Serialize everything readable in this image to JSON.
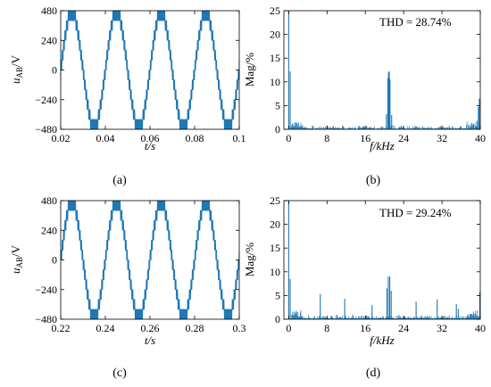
{
  "colors": {
    "series": "#1f77b4",
    "axis": "#000000",
    "background": "#ffffff"
  },
  "chart_data": [
    {
      "panel": "a",
      "caption": "(a)",
      "type": "line",
      "title": "",
      "xlabel": "t/s",
      "ylabel": "uAB/V",
      "ylabel_main": "u",
      "ylabel_sub": "AB",
      "ylabel_unit": "/V",
      "xlim": [
        0.02,
        0.1
      ],
      "ylim": [
        -480,
        480
      ],
      "xticks": [
        0.02,
        0.04,
        0.06,
        0.08,
        0.1
      ],
      "xtick_labels": [
        "0.02",
        "0.04",
        "0.06",
        "0.08",
        "0.1"
      ],
      "yticks": [
        480,
        240,
        0,
        -240,
        -480
      ],
      "ytick_labels": [
        "480",
        "240",
        "0",
        "−240",
        "−480"
      ],
      "grid": false,
      "series": [
        {
          "waveform": "multilevel stepped sine (line voltage)",
          "frequency_hz": 50,
          "amplitude_v": 480,
          "step_v": 80
        }
      ]
    },
    {
      "panel": "b",
      "caption": "(b)",
      "type": "bar",
      "title": "",
      "annotation": "THD = 28.74%",
      "xlabel": "f/kHz",
      "ylabel": "Mag/%",
      "xlim": [
        -1,
        40
      ],
      "ylim": [
        0,
        25
      ],
      "xticks": [
        0,
        8,
        16,
        24,
        32,
        40
      ],
      "xtick_labels": [
        "0",
        "8",
        "16",
        "24",
        "32",
        "40"
      ],
      "yticks": [
        0,
        5,
        10,
        15,
        20,
        25
      ],
      "ytick_labels": [
        "0",
        "5",
        "10",
        "15",
        "20",
        "25"
      ],
      "grid": false,
      "peaks": [
        {
          "f": 0,
          "mag": 25
        },
        {
          "f": 0.3,
          "mag": 12.2
        },
        {
          "f": 20.7,
          "mag": 10.8
        },
        {
          "f": 20.85,
          "mag": 12.1
        },
        {
          "f": 21.0,
          "mag": 12.2
        },
        {
          "f": 21.15,
          "mag": 10.5
        },
        {
          "f": 20.4,
          "mag": 3.2
        },
        {
          "f": 21.5,
          "mag": 3.0
        },
        {
          "f": 39.3,
          "mag": 1.8
        },
        {
          "f": 39.6,
          "mag": 4.7
        },
        {
          "f": 39.8,
          "mag": 6.5
        }
      ],
      "noise_floor": {
        "from": 0.5,
        "to": 40,
        "typical": 0.5
      }
    },
    {
      "panel": "c",
      "caption": "(c)",
      "type": "line",
      "title": "",
      "xlabel": "t/s",
      "ylabel": "uAB/V",
      "ylabel_main": "u",
      "ylabel_sub": "AB",
      "ylabel_unit": "/V",
      "xlim": [
        0.22,
        0.3
      ],
      "ylim": [
        -480,
        480
      ],
      "xticks": [
        0.22,
        0.24,
        0.26,
        0.28,
        0.3
      ],
      "xtick_labels": [
        "0.22",
        "0.24",
        "0.26",
        "0.28",
        "0.3"
      ],
      "yticks": [
        480,
        240,
        0,
        -240,
        -480
      ],
      "ytick_labels": [
        "480",
        "240",
        "0",
        "−240",
        "−480"
      ],
      "grid": false,
      "series": [
        {
          "waveform": "multilevel stepped sine (line voltage)",
          "frequency_hz": 50,
          "amplitude_v": 480,
          "step_v": 80
        }
      ]
    },
    {
      "panel": "d",
      "caption": "(d)",
      "type": "bar",
      "title": "",
      "annotation": "THD = 29.24%",
      "xlabel": "f/kHz",
      "ylabel": "Mag/%",
      "xlim": [
        -1,
        40
      ],
      "ylim": [
        0,
        25
      ],
      "xticks": [
        0,
        8,
        16,
        24,
        32,
        40
      ],
      "xtick_labels": [
        "0",
        "8",
        "16",
        "24",
        "32",
        "40"
      ],
      "yticks": [
        0,
        5,
        10,
        15,
        20,
        25
      ],
      "ytick_labels": [
        "0",
        "5",
        "10",
        "15",
        "20",
        "25"
      ],
      "grid": false,
      "peaks": [
        {
          "f": 0,
          "mag": 25
        },
        {
          "f": 0.3,
          "mag": 8.5
        },
        {
          "f": 6.6,
          "mag": 5.3
        },
        {
          "f": 11.7,
          "mag": 4.3
        },
        {
          "f": 17.4,
          "mag": 3.0
        },
        {
          "f": 20.5,
          "mag": 6.5
        },
        {
          "f": 20.8,
          "mag": 9.0
        },
        {
          "f": 21.1,
          "mag": 9.0
        },
        {
          "f": 21.4,
          "mag": 6.0
        },
        {
          "f": 26.6,
          "mag": 3.7
        },
        {
          "f": 31.0,
          "mag": 4.2
        },
        {
          "f": 35.0,
          "mag": 3.2
        },
        {
          "f": 35.4,
          "mag": 2.2
        },
        {
          "f": 39.9,
          "mag": 5.7
        }
      ],
      "noise_floor": {
        "from": 0.5,
        "to": 40,
        "typical": 0.6
      }
    }
  ]
}
